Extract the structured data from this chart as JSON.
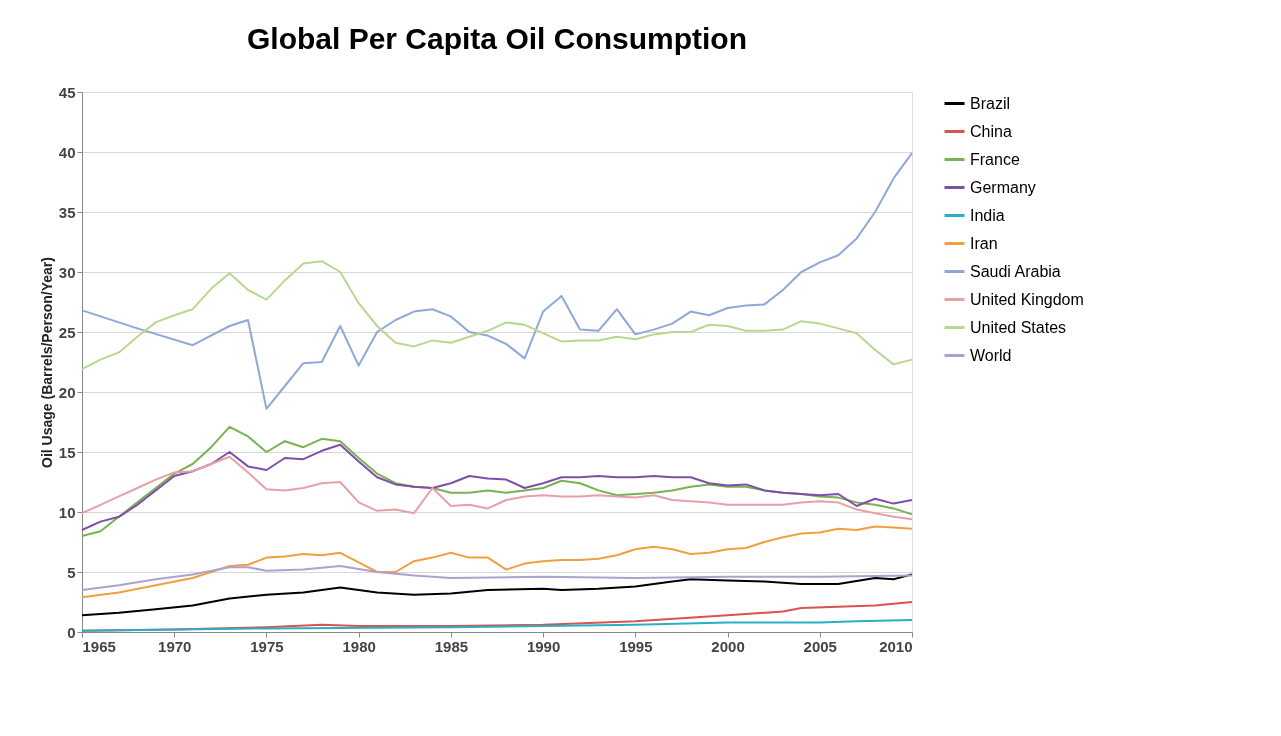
{
  "chart_data": {
    "type": "line",
    "title": "Global Per Capita Oil Consumption",
    "ylabel": "Oil Usage (Barrels/Person/Year)",
    "xlim": [
      1965,
      2010
    ],
    "xticks": [
      1965,
      1970,
      1975,
      1980,
      1985,
      1990,
      1995,
      2000,
      2005,
      2010
    ],
    "ylim": [
      0,
      45
    ],
    "yticks": [
      0,
      5,
      10,
      15,
      20,
      25,
      30,
      35,
      40,
      45
    ],
    "grid": "y",
    "legend": "right",
    "marker": "none",
    "line_style": "solid",
    "series": [
      {
        "name": "Brazil",
        "color": "#000000",
        "x": [
          1965,
          1967,
          1969,
          1971,
          1972,
          1973,
          1975,
          1977,
          1979,
          1980,
          1981,
          1983,
          1985,
          1987,
          1990,
          1991,
          1993,
          1995,
          1997,
          1998,
          2000,
          2002,
          2004,
          2006,
          2008,
          2009,
          2010
        ],
        "values": [
          1.4,
          1.6,
          1.9,
          2.2,
          2.5,
          2.8,
          3.1,
          3.3,
          3.7,
          3.5,
          3.3,
          3.1,
          3.2,
          3.5,
          3.6,
          3.5,
          3.6,
          3.8,
          4.2,
          4.4,
          4.3,
          4.2,
          4.0,
          4.0,
          4.5,
          4.4,
          4.8
        ]
      },
      {
        "name": "China",
        "color": "#d9534f",
        "x": [
          1965,
          1970,
          1975,
          1978,
          1980,
          1985,
          1990,
          1995,
          2000,
          2003,
          2004,
          2006,
          2008,
          2010
        ],
        "values": [
          0.1,
          0.2,
          0.4,
          0.6,
          0.5,
          0.5,
          0.6,
          0.9,
          1.4,
          1.7,
          2.0,
          2.1,
          2.2,
          2.5
        ]
      },
      {
        "name": "France",
        "color": "#77b350",
        "x": [
          1965,
          1966,
          1967,
          1968,
          1969,
          1970,
          1971,
          1972,
          1973,
          1974,
          1975,
          1976,
          1977,
          1978,
          1979,
          1980,
          1981,
          1982,
          1983,
          1984,
          1985,
          1986,
          1987,
          1988,
          1989,
          1990,
          1991,
          1992,
          1993,
          1994,
          1995,
          1996,
          1997,
          1998,
          1999,
          2000,
          2001,
          2002,
          2003,
          2004,
          2005,
          2006,
          2007,
          2008,
          2009,
          2010
        ],
        "values": [
          8.0,
          8.4,
          9.6,
          10.8,
          12.0,
          13.2,
          14.0,
          15.4,
          17.1,
          16.3,
          15.0,
          15.9,
          15.4,
          16.1,
          15.9,
          14.5,
          13.2,
          12.4,
          12.1,
          12.0,
          11.6,
          11.6,
          11.8,
          11.6,
          11.8,
          12.0,
          12.6,
          12.4,
          11.8,
          11.4,
          11.5,
          11.6,
          11.8,
          12.1,
          12.3,
          12.1,
          12.1,
          11.8,
          11.6,
          11.5,
          11.3,
          11.2,
          10.8,
          10.6,
          10.3,
          9.8
        ]
      },
      {
        "name": "Germany",
        "color": "#7f4fa8",
        "x": [
          1965,
          1966,
          1967,
          1968,
          1969,
          1970,
          1971,
          1972,
          1973,
          1974,
          1975,
          1976,
          1977,
          1978,
          1979,
          1980,
          1981,
          1982,
          1983,
          1984,
          1985,
          1986,
          1987,
          1988,
          1989,
          1990,
          1991,
          1992,
          1993,
          1994,
          1995,
          1996,
          1997,
          1998,
          1999,
          2000,
          2001,
          2002,
          2003,
          2004,
          2005,
          2006,
          2007,
          2008,
          2009,
          2010
        ],
        "values": [
          8.5,
          9.2,
          9.6,
          10.6,
          11.8,
          13.0,
          13.4,
          14.0,
          15.0,
          13.8,
          13.5,
          14.5,
          14.4,
          15.1,
          15.6,
          14.2,
          12.9,
          12.3,
          12.1,
          12.0,
          12.4,
          13.0,
          12.8,
          12.7,
          12.0,
          12.4,
          12.9,
          12.9,
          13.0,
          12.9,
          12.9,
          13.0,
          12.9,
          12.9,
          12.4,
          12.2,
          12.3,
          11.8,
          11.6,
          11.5,
          11.4,
          11.5,
          10.5,
          11.1,
          10.7,
          11.0
        ]
      },
      {
        "name": "India",
        "color": "#2ab0c5",
        "x": [
          1965,
          1975,
          1985,
          1995,
          2000,
          2005,
          2007,
          2010
        ],
        "values": [
          0.1,
          0.3,
          0.4,
          0.6,
          0.8,
          0.8,
          0.9,
          1.0
        ]
      },
      {
        "name": "Iran",
        "color": "#f0a040",
        "x": [
          1965,
          1967,
          1969,
          1971,
          1972,
          1973,
          1974,
          1975,
          1976,
          1977,
          1978,
          1979,
          1980,
          1981,
          1982,
          1983,
          1984,
          1985,
          1986,
          1987,
          1988,
          1989,
          1990,
          1991,
          1992,
          1993,
          1994,
          1995,
          1996,
          1997,
          1998,
          1999,
          2000,
          2001,
          2002,
          2003,
          2004,
          2005,
          2006,
          2007,
          2008,
          2009,
          2010
        ],
        "values": [
          2.9,
          3.3,
          3.9,
          4.5,
          5.0,
          5.5,
          5.6,
          6.2,
          6.3,
          6.5,
          6.4,
          6.6,
          5.8,
          5.0,
          5.0,
          5.9,
          6.2,
          6.6,
          6.2,
          6.2,
          5.2,
          5.7,
          5.9,
          6.0,
          6.0,
          6.1,
          6.4,
          6.9,
          7.1,
          6.9,
          6.5,
          6.6,
          6.9,
          7.0,
          7.5,
          7.9,
          8.2,
          8.3,
          8.6,
          8.5,
          8.8,
          8.7,
          8.6
        ]
      },
      {
        "name": "Saudi Arabia",
        "color": "#8fa8d8",
        "x": [
          1965,
          1968,
          1971,
          1973,
          1974,
          1975,
          1976,
          1977,
          1978,
          1979,
          1980,
          1981,
          1982,
          1983,
          1984,
          1985,
          1986,
          1987,
          1988,
          1989,
          1990,
          1991,
          1992,
          1993,
          1994,
          1995,
          1996,
          1997,
          1998,
          1999,
          2000,
          2001,
          2002,
          2003,
          2004,
          2005,
          2006,
          2007,
          2008,
          2009,
          2010
        ],
        "values": [
          26.8,
          25.3,
          23.9,
          25.5,
          26.0,
          18.6,
          20.5,
          22.4,
          22.5,
          25.5,
          22.2,
          25.0,
          26.0,
          26.7,
          26.9,
          26.3,
          25.0,
          24.7,
          24.0,
          22.8,
          26.7,
          28.0,
          25.2,
          25.1,
          26.9,
          24.8,
          25.2,
          25.7,
          26.7,
          26.4,
          27.0,
          27.2,
          27.3,
          28.5,
          30.0,
          30.8,
          31.4,
          32.8,
          35.0,
          37.8,
          39.9
        ]
      },
      {
        "name": "United Kingdom",
        "color": "#e8a0a8",
        "x": [
          1965,
          1966,
          1967,
          1968,
          1969,
          1970,
          1971,
          1972,
          1973,
          1974,
          1975,
          1976,
          1977,
          1978,
          1979,
          1980,
          1981,
          1982,
          1983,
          1984,
          1985,
          1986,
          1987,
          1988,
          1989,
          1990,
          1991,
          1992,
          1993,
          1994,
          1995,
          1996,
          1997,
          1998,
          1999,
          2000,
          2001,
          2002,
          2003,
          2004,
          2005,
          2006,
          2007,
          2008,
          2009,
          2010
        ],
        "values": [
          9.9,
          10.6,
          11.3,
          12.0,
          12.7,
          13.3,
          13.4,
          14.0,
          14.6,
          13.3,
          11.9,
          11.8,
          12.0,
          12.4,
          12.5,
          10.8,
          10.1,
          10.2,
          9.9,
          12.0,
          10.5,
          10.6,
          10.3,
          11.0,
          11.3,
          11.4,
          11.3,
          11.3,
          11.4,
          11.3,
          11.2,
          11.4,
          11.0,
          10.9,
          10.8,
          10.6,
          10.6,
          10.6,
          10.6,
          10.8,
          10.9,
          10.8,
          10.2,
          9.9,
          9.6,
          9.4
        ]
      },
      {
        "name": "United States",
        "color": "#b8d890",
        "x": [
          1965,
          1966,
          1967,
          1968,
          1969,
          1970,
          1971,
          1972,
          1973,
          1974,
          1975,
          1976,
          1977,
          1978,
          1979,
          1980,
          1981,
          1982,
          1983,
          1984,
          1985,
          1986,
          1987,
          1988,
          1989,
          1990,
          1991,
          1992,
          1993,
          1994,
          1995,
          1996,
          1997,
          1998,
          1999,
          2000,
          2001,
          2002,
          2003,
          2004,
          2005,
          2006,
          2007,
          2008,
          2009,
          2010
        ],
        "values": [
          21.9,
          22.7,
          23.3,
          24.6,
          25.8,
          26.4,
          26.9,
          28.6,
          29.9,
          28.5,
          27.7,
          29.3,
          30.7,
          30.9,
          30.0,
          27.4,
          25.5,
          24.1,
          23.8,
          24.3,
          24.1,
          24.6,
          25.1,
          25.8,
          25.6,
          24.9,
          24.2,
          24.3,
          24.3,
          24.6,
          24.4,
          24.8,
          25.0,
          25.0,
          25.6,
          25.5,
          25.1,
          25.1,
          25.2,
          25.9,
          25.7,
          25.3,
          24.9,
          23.5,
          22.3,
          22.7
        ]
      },
      {
        "name": "World",
        "color": "#b0a0d0",
        "x": [
          1965,
          1967,
          1969,
          1971,
          1973,
          1974,
          1975,
          1977,
          1979,
          1981,
          1983,
          1985,
          1990,
          1995,
          2000,
          2005,
          2010
        ],
        "values": [
          3.5,
          3.9,
          4.4,
          4.8,
          5.4,
          5.4,
          5.1,
          5.2,
          5.5,
          5.0,
          4.7,
          4.5,
          4.6,
          4.5,
          4.6,
          4.6,
          4.7
        ]
      }
    ]
  }
}
